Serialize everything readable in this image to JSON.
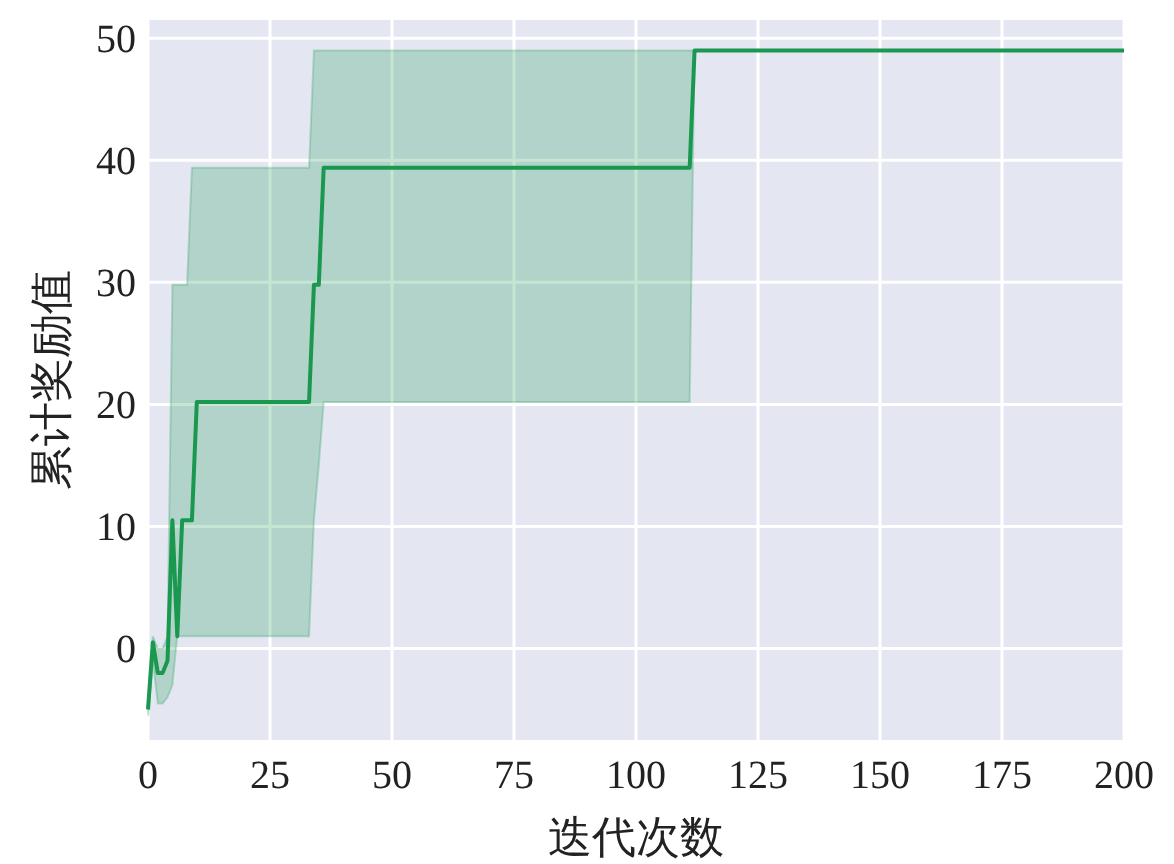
{
  "chart_data": {
    "type": "line",
    "xlabel": "迭代次数",
    "ylabel": "累计奖励值",
    "x": [
      0,
      1,
      2,
      3,
      4,
      5,
      6,
      7,
      8,
      9,
      10,
      33,
      34,
      35,
      36,
      111,
      112,
      200
    ],
    "series": [
      {
        "color": "#1a9850",
        "values": [
          -5,
          0.5,
          -2,
          -2,
          -1,
          10.5,
          1,
          10.5,
          10.5,
          10.5,
          20.2,
          20.2,
          29.8,
          29.8,
          39.4,
          39.4,
          49,
          49
        ],
        "lower": [
          -5.5,
          -1,
          -4.5,
          -4.5,
          -4,
          -3,
          1,
          1,
          1,
          1,
          1,
          1,
          10.5,
          15,
          20.2,
          20.2,
          49,
          49
        ],
        "upper": [
          -4.5,
          1,
          0,
          0,
          1,
          29.8,
          29.8,
          29.8,
          29.8,
          39.4,
          39.4,
          39.4,
          49,
          49,
          49,
          49,
          49,
          49
        ]
      }
    ],
    "xlim": [
      0,
      200
    ],
    "ylim": [
      -7.5,
      51.5
    ],
    "xticks": [
      0,
      25,
      50,
      75,
      100,
      125,
      150,
      175,
      200
    ],
    "yticks": [
      0,
      10,
      20,
      30,
      40,
      50
    ],
    "grid": true
  }
}
